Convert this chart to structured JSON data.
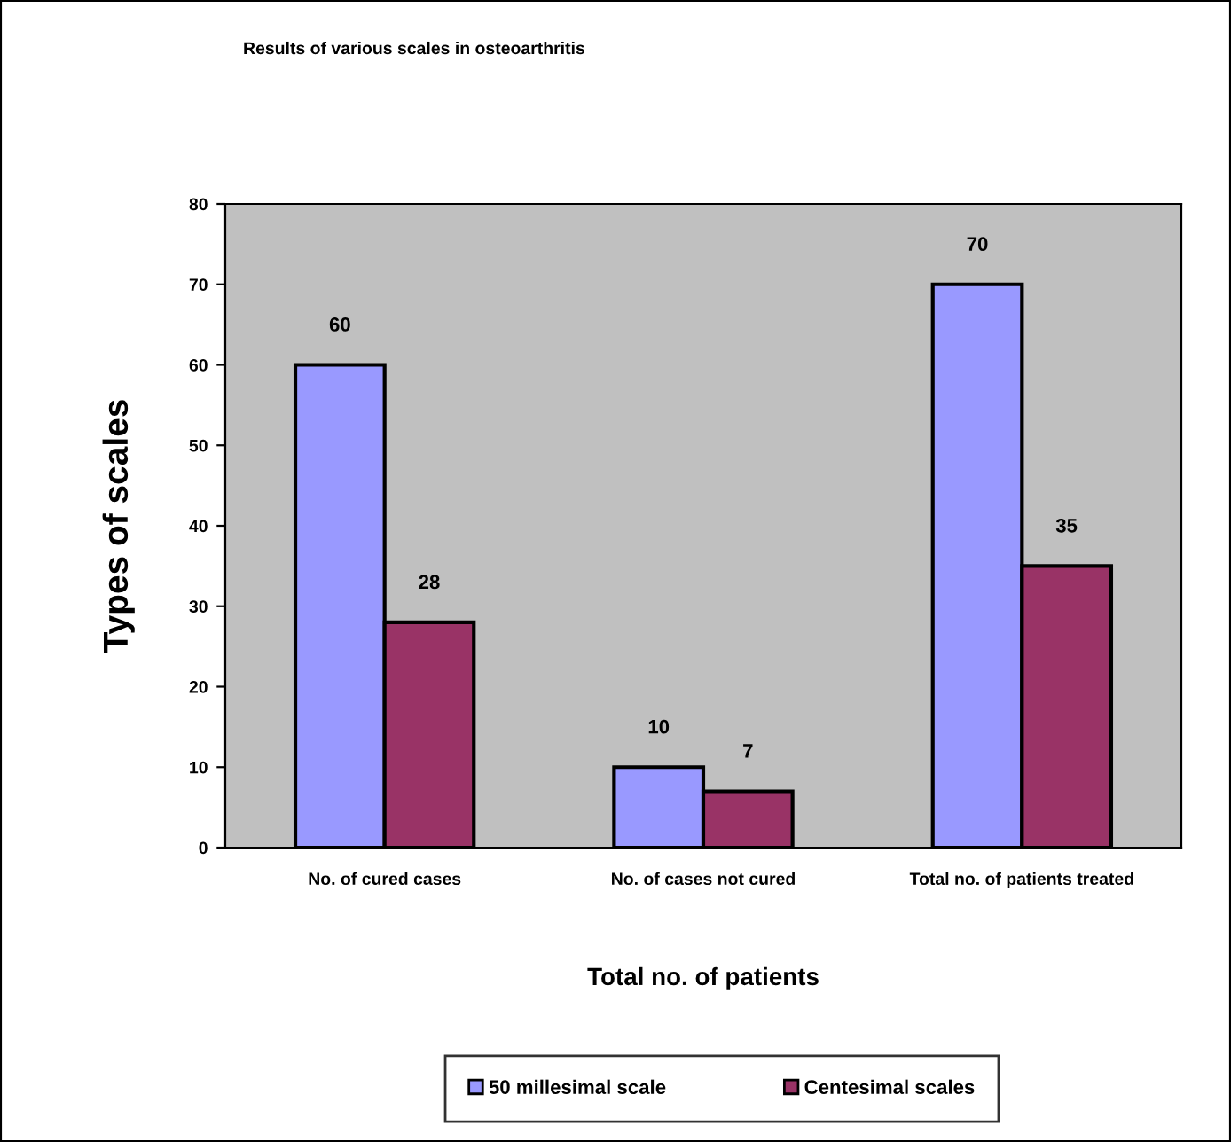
{
  "chart_data": {
    "type": "bar",
    "title": "Results of various scales in osteoarthritis",
    "xlabel": "Total no. of patients",
    "ylabel": "Types of scales",
    "categories": [
      "No. of cured cases",
      "No. of cases not cured",
      "Total no. of patients treated"
    ],
    "series": [
      {
        "name": "50 millesimal scale",
        "color": "#9999ff",
        "values": [
          60,
          10,
          70
        ]
      },
      {
        "name": "Centesimal scales",
        "color": "#993366",
        "values": [
          28,
          7,
          35
        ]
      }
    ],
    "ylim": [
      0,
      80
    ],
    "yticks": [
      0,
      10,
      20,
      30,
      40,
      50,
      60,
      70,
      80
    ],
    "grid": false,
    "legend": "bottom",
    "data_labels": true
  }
}
